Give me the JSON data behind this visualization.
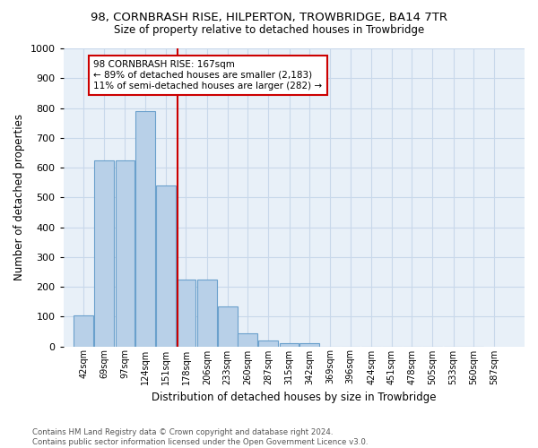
{
  "title": "98, CORNBRASH RISE, HILPERTON, TROWBRIDGE, BA14 7TR",
  "subtitle": "Size of property relative to detached houses in Trowbridge",
  "xlabel": "Distribution of detached houses by size in Trowbridge",
  "ylabel": "Number of detached properties",
  "bar_values": [
    103,
    625,
    625,
    790,
    540,
    225,
    225,
    135,
    45,
    20,
    12,
    10,
    0,
    0,
    0,
    0,
    0,
    0,
    0,
    0
  ],
  "bin_labels": [
    "42sqm",
    "69sqm",
    "97sqm",
    "124sqm",
    "151sqm",
    "178sqm",
    "206sqm",
    "233sqm",
    "260sqm",
    "287sqm",
    "315sqm",
    "342sqm",
    "369sqm",
    "396sqm",
    "424sqm",
    "451sqm",
    "478sqm",
    "505sqm",
    "533sqm",
    "560sqm",
    "587sqm"
  ],
  "bar_color": "#b8d0e8",
  "bar_edge_color": "#6aa0cc",
  "grid_color": "#c8d8ea",
  "property_line_color": "#cc0000",
  "annotation_text": "98 CORNBRASH RISE: 167sqm\n← 89% of detached houses are smaller (2,183)\n11% of semi-detached houses are larger (282) →",
  "annotation_box_color": "#ffffff",
  "annotation_box_edge": "#cc0000",
  "ylim": [
    0,
    1000
  ],
  "yticks": [
    0,
    100,
    200,
    300,
    400,
    500,
    600,
    700,
    800,
    900,
    1000
  ],
  "footer_text": "Contains HM Land Registry data © Crown copyright and database right 2024.\nContains public sector information licensed under the Open Government Licence v3.0.",
  "bg_color": "#e8f0f8",
  "fig_bg_color": "#ffffff",
  "bin_width": 27
}
